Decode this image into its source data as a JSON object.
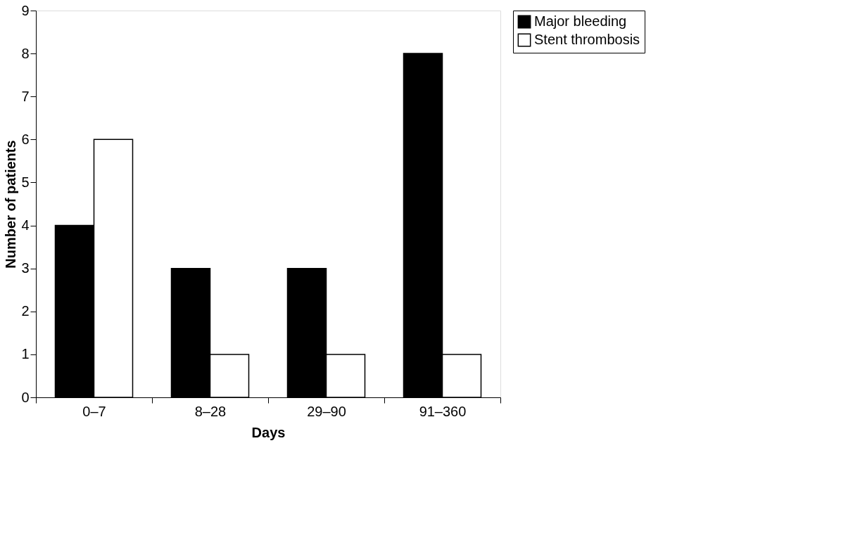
{
  "chart_data": {
    "type": "bar",
    "xlabel": "Days",
    "ylabel": "Number of patients",
    "categories": [
      "0–7",
      "8–28",
      "29–90",
      "91–360"
    ],
    "series": [
      {
        "name": "Major bleeding",
        "color": "#000000",
        "values": [
          4,
          3,
          3,
          8
        ]
      },
      {
        "name": "Stent thrombosis",
        "color": "#ffffff",
        "values": [
          6,
          1,
          1,
          1
        ]
      }
    ],
    "ylim": [
      0,
      9
    ],
    "yticks": [
      0,
      1,
      2,
      3,
      4,
      5,
      6,
      7,
      8,
      9
    ],
    "legend": "right",
    "grid": false
  }
}
